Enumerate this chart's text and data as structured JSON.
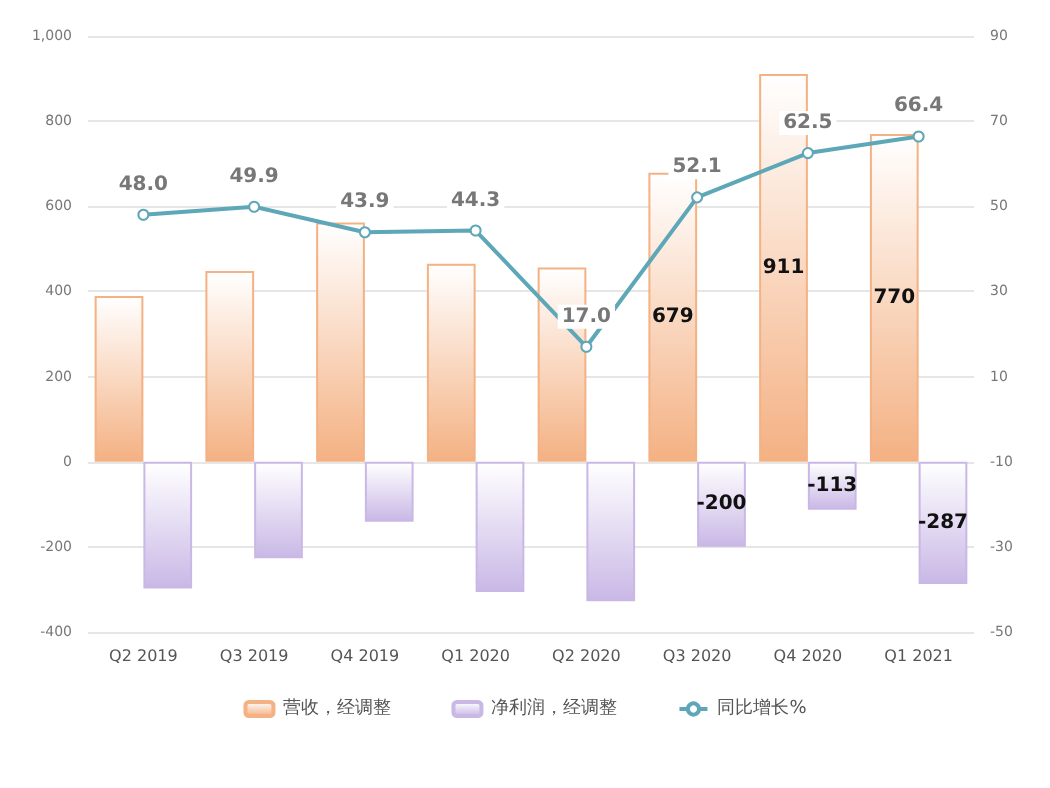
{
  "chart_data": {
    "type": "bar",
    "categories": [
      "Q2 2019",
      "Q3 2019",
      "Q4 2019",
      "Q1 2020",
      "Q2 2020",
      "Q3 2020",
      "Q4 2020",
      "Q1 2021"
    ],
    "series": [
      {
        "name": "营收，经调整",
        "color": "#f4b183",
        "values": [
          389,
          448,
          562,
          465,
          456,
          679,
          911,
          770
        ],
        "value_labels": [
          null,
          null,
          null,
          null,
          null,
          "679",
          "911",
          "770"
        ]
      },
      {
        "name": "净利润，经调整",
        "color": "#c9b8e6",
        "values": [
          -298,
          -227,
          -141,
          -306,
          -328,
          -200,
          -113,
          -287
        ],
        "value_labels": [
          null,
          null,
          null,
          null,
          null,
          "-200",
          "-113",
          "-287"
        ]
      },
      {
        "name": "同比增长%",
        "type": "line",
        "axis": "y2",
        "color": "#5ea7b8",
        "values": [
          48.0,
          49.9,
          43.9,
          44.3,
          17.0,
          52.1,
          62.5,
          66.4
        ],
        "value_labels": [
          "48.0",
          "49.9",
          "43.9",
          "44.3",
          "17.0",
          "52.1",
          "62.5",
          "66.4"
        ]
      }
    ],
    "ylim": [
      -400,
      1000
    ],
    "yticks": [
      -400,
      -200,
      0,
      200,
      400,
      600,
      800,
      {
        "value": 1000,
        "label": "1,000"
      }
    ],
    "y2lim": [
      -50,
      90
    ],
    "y2ticks": [
      -50,
      -30,
      -10,
      10,
      30,
      50,
      70,
      90
    ],
    "grid": "y",
    "legend": "bottom",
    "marker": "circle"
  }
}
